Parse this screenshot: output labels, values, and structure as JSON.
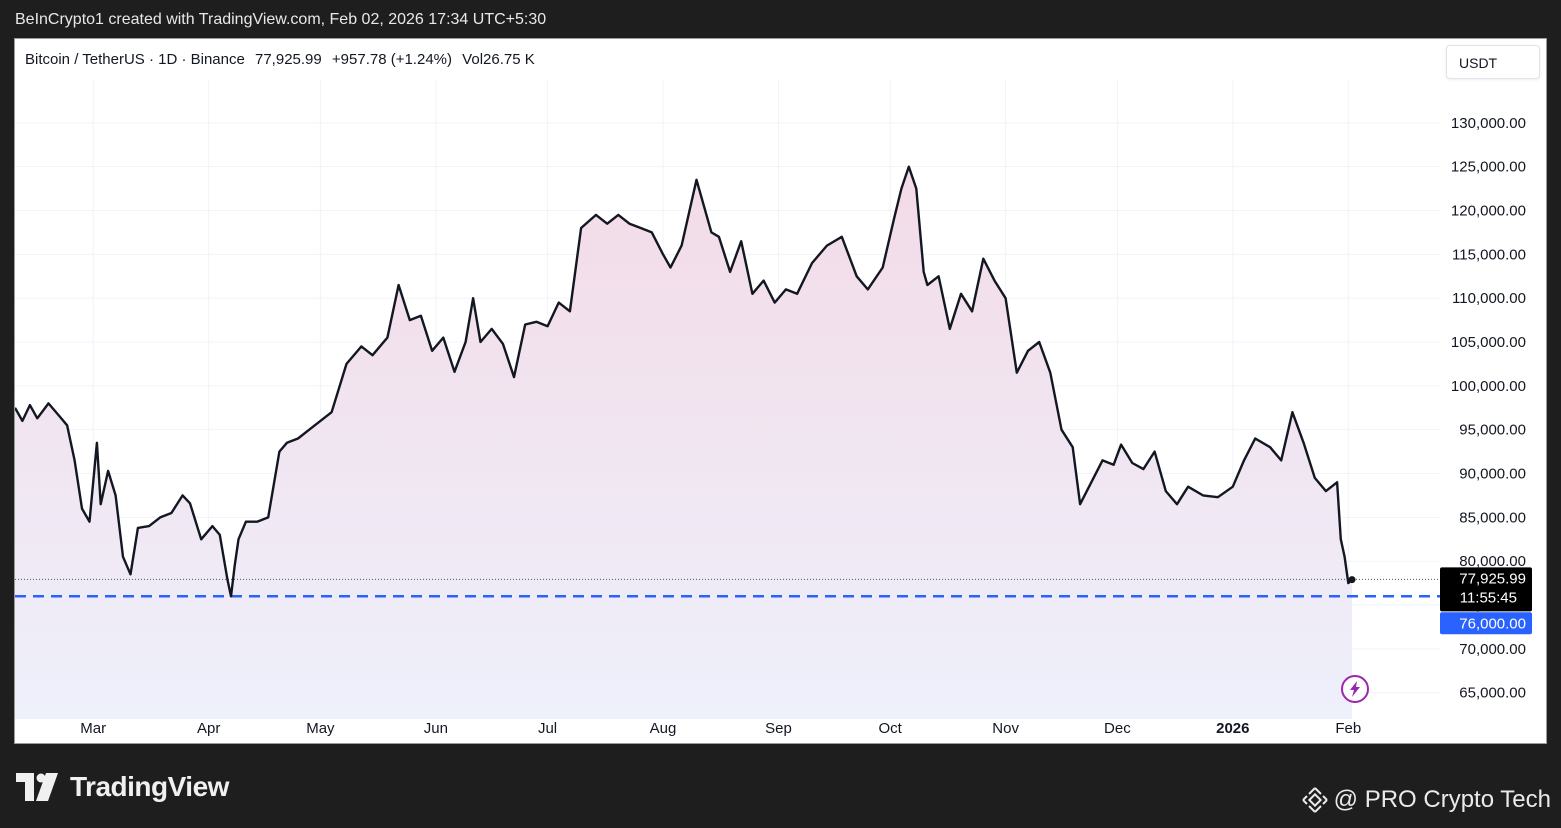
{
  "header": {
    "caption": "BeInCrypto1 created with TradingView.com, Feb 02, 2026 17:34 UTC+5:30"
  },
  "legend": {
    "symbol": "Bitcoin / TetherUS · 1D · Binance",
    "price": "77,925.99",
    "change": "+957.78 (+1.24%)",
    "volume": "Vol26.75 K"
  },
  "currency_button": "USDT",
  "price_labels": {
    "last_price": "77,925.99",
    "countdown": "11:55:45",
    "support": "76,000.00"
  },
  "footer": {
    "brand": "TradingView",
    "watermark": "@ PRO Crypto Tech"
  },
  "colors": {
    "line": "#131722",
    "fill_top": "#f3dbe7",
    "fill_bottom": "#eef0fb",
    "support_line": "#2962ff",
    "last_price_bg": "#000000",
    "alert_icon": "#9c27b0"
  },
  "chart_data": {
    "type": "area",
    "title": "Bitcoin / TetherUS · 1D · Binance",
    "y_axis": {
      "unit": "USDT",
      "range": [
        62000,
        135000
      ],
      "ticks": [
        65000,
        70000,
        75000,
        80000,
        85000,
        90000,
        95000,
        100000,
        105000,
        110000,
        115000,
        120000,
        125000,
        130000
      ],
      "tick_labels": [
        "65,000.00",
        "70,000.00",
        "75,000.00",
        "80,000.00",
        "85,000.00",
        "90,000.00",
        "95,000.00",
        "100,000.00",
        "105,000.00",
        "110,000.00",
        "115,000.00",
        "120,000.00",
        "125,000.00",
        "130,000.00"
      ]
    },
    "x_axis": {
      "range": [
        "2025-02-08",
        "2026-02-02"
      ],
      "ticks": [
        {
          "label": "Mar",
          "date": "2025-03-01",
          "bold": false
        },
        {
          "label": "Apr",
          "date": "2025-04-01",
          "bold": false
        },
        {
          "label": "May",
          "date": "2025-05-01",
          "bold": false
        },
        {
          "label": "Jun",
          "date": "2025-06-01",
          "bold": false
        },
        {
          "label": "Jul",
          "date": "2025-07-01",
          "bold": false
        },
        {
          "label": "Aug",
          "date": "2025-08-01",
          "bold": false
        },
        {
          "label": "Sep",
          "date": "2025-09-01",
          "bold": false
        },
        {
          "label": "Oct",
          "date": "2025-10-01",
          "bold": false
        },
        {
          "label": "Nov",
          "date": "2025-11-01",
          "bold": false
        },
        {
          "label": "Dec",
          "date": "2025-12-01",
          "bold": false
        },
        {
          "label": "2026",
          "date": "2026-01-01",
          "bold": true
        },
        {
          "label": "Feb",
          "date": "2026-02-01",
          "bold": false
        }
      ]
    },
    "series": [
      {
        "x": [
          "2025-02-08",
          "2025-02-10",
          "2025-02-12",
          "2025-02-14",
          "2025-02-17",
          "2025-02-20",
          "2025-02-22",
          "2025-02-24",
          "2025-02-26",
          "2025-02-28",
          "2025-03-02",
          "2025-03-03",
          "2025-03-05",
          "2025-03-07",
          "2025-03-09",
          "2025-03-11",
          "2025-03-13",
          "2025-03-16",
          "2025-03-19",
          "2025-03-22",
          "2025-03-25",
          "2025-03-27",
          "2025-03-30",
          "2025-04-02",
          "2025-04-04",
          "2025-04-06",
          "2025-04-07",
          "2025-04-08",
          "2025-04-09",
          "2025-04-11",
          "2025-04-14",
          "2025-04-17",
          "2025-04-20",
          "2025-04-22",
          "2025-04-25",
          "2025-04-28",
          "2025-05-01",
          "2025-05-04",
          "2025-05-08",
          "2025-05-12",
          "2025-05-15",
          "2025-05-19",
          "2025-05-22",
          "2025-05-25",
          "2025-05-28",
          "2025-05-31",
          "2025-06-03",
          "2025-06-06",
          "2025-06-09",
          "2025-06-11",
          "2025-06-13",
          "2025-06-16",
          "2025-06-19",
          "2025-06-22",
          "2025-06-25",
          "2025-06-28",
          "2025-07-01",
          "2025-07-04",
          "2025-07-07",
          "2025-07-10",
          "2025-07-14",
          "2025-07-17",
          "2025-07-20",
          "2025-07-23",
          "2025-07-26",
          "2025-07-29",
          "2025-08-01",
          "2025-08-03",
          "2025-08-06",
          "2025-08-10",
          "2025-08-14",
          "2025-08-16",
          "2025-08-19",
          "2025-08-22",
          "2025-08-25",
          "2025-08-28",
          "2025-08-31",
          "2025-09-03",
          "2025-09-06",
          "2025-09-10",
          "2025-09-14",
          "2025-09-18",
          "2025-09-22",
          "2025-09-25",
          "2025-09-29",
          "2025-10-02",
          "2025-10-04",
          "2025-10-06",
          "2025-10-08",
          "2025-10-10",
          "2025-10-11",
          "2025-10-14",
          "2025-10-17",
          "2025-10-20",
          "2025-10-23",
          "2025-10-26",
          "2025-10-29",
          "2025-11-01",
          "2025-11-04",
          "2025-11-07",
          "2025-11-10",
          "2025-11-13",
          "2025-11-16",
          "2025-11-19",
          "2025-11-21",
          "2025-11-24",
          "2025-11-27",
          "2025-11-30",
          "2025-12-02",
          "2025-12-05",
          "2025-12-08",
          "2025-12-11",
          "2025-12-14",
          "2025-12-17",
          "2025-12-20",
          "2025-12-24",
          "2025-12-28",
          "2026-01-01",
          "2026-01-04",
          "2026-01-07",
          "2026-01-11",
          "2026-01-14",
          "2026-01-17",
          "2026-01-20",
          "2026-01-23",
          "2026-01-26",
          "2026-01-29",
          "2026-01-30",
          "2026-01-31",
          "2026-02-01",
          "2026-02-02"
        ],
        "y": [
          97500,
          96000,
          97800,
          96300,
          98000,
          96500,
          95500,
          91500,
          86000,
          84500,
          93500,
          86500,
          90300,
          87500,
          80500,
          78500,
          83800,
          84000,
          85000,
          85500,
          87500,
          86600,
          82500,
          84000,
          83000,
          78000,
          76000,
          79500,
          82500,
          84500,
          84500,
          85000,
          92500,
          93500,
          94000,
          95000,
          96000,
          97000,
          102500,
          104500,
          103500,
          105500,
          111500,
          107500,
          108000,
          104000,
          105500,
          101600,
          105000,
          110000,
          105000,
          106500,
          104800,
          101000,
          107000,
          107300,
          106800,
          109500,
          108500,
          118000,
          119500,
          118500,
          119500,
          118500,
          118000,
          117500,
          115000,
          113500,
          116000,
          123500,
          117500,
          117000,
          113000,
          116500,
          110500,
          112000,
          109500,
          111000,
          110500,
          114000,
          116000,
          117000,
          112500,
          111000,
          113500,
          119000,
          122500,
          125000,
          122500,
          113000,
          111500,
          112500,
          106500,
          110500,
          108500,
          114500,
          112000,
          110000,
          101500,
          104000,
          105000,
          101500,
          95000,
          93000,
          86500,
          89000,
          91500,
          91000,
          93300,
          91200,
          90500,
          92500,
          88000,
          86500,
          88500,
          87500,
          87300,
          88500,
          91500,
          94000,
          93000,
          91500,
          97000,
          93500,
          89500,
          88000,
          89000,
          82500,
          80500,
          77500,
          77900
        ]
      }
    ],
    "last_price": 77925.99,
    "support_level": 76000
  }
}
